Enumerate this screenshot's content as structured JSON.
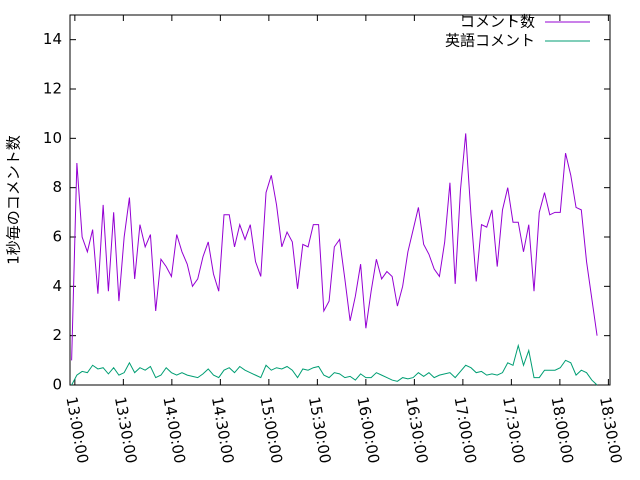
{
  "chart_data": {
    "type": "line",
    "ylabel": "1秒毎のコメント数",
    "x": [
      "12:58:00",
      "13:01:15",
      "13:04:30",
      "13:07:45",
      "13:11:00",
      "13:14:15",
      "13:17:30",
      "13:20:45",
      "13:24:00",
      "13:27:15",
      "13:30:30",
      "13:33:45",
      "13:37:00",
      "13:40:15",
      "13:43:30",
      "13:46:45",
      "13:50:00",
      "13:53:15",
      "13:56:30",
      "13:59:45",
      "14:03:00",
      "14:06:15",
      "14:09:30",
      "14:12:45",
      "14:16:00",
      "14:19:15",
      "14:22:30",
      "14:25:45",
      "14:29:00",
      "14:32:15",
      "14:35:30",
      "14:38:45",
      "14:42:00",
      "14:45:15",
      "14:48:30",
      "14:51:45",
      "14:55:00",
      "14:58:15",
      "15:01:30",
      "15:04:45",
      "15:08:00",
      "15:11:15",
      "15:14:30",
      "15:17:45",
      "15:21:00",
      "15:24:15",
      "15:27:30",
      "15:30:45",
      "15:34:00",
      "15:37:15",
      "15:40:30",
      "15:43:45",
      "15:47:00",
      "15:50:15",
      "15:53:30",
      "15:56:45",
      "16:00:00",
      "16:03:15",
      "16:06:30",
      "16:09:45",
      "16:13:00",
      "16:16:15",
      "16:19:30",
      "16:22:45",
      "16:26:00",
      "16:29:15",
      "16:32:30",
      "16:35:45",
      "16:39:00",
      "16:42:15",
      "16:45:30",
      "16:48:45",
      "16:52:00",
      "16:55:15",
      "16:58:30",
      "17:01:45",
      "17:05:00",
      "17:08:15",
      "17:11:30",
      "17:14:45",
      "17:18:00",
      "17:21:15",
      "17:24:30",
      "17:27:45",
      "17:31:00",
      "17:34:15",
      "17:37:30",
      "17:40:45",
      "17:44:00",
      "17:47:15",
      "17:50:30",
      "17:53:45",
      "17:57:00",
      "18:00:15",
      "18:03:30",
      "18:06:45",
      "18:10:00",
      "18:13:15",
      "18:16:30",
      "18:19:45",
      "18:23:00"
    ],
    "series": [
      {
        "name": "コメント数",
        "color": "#9400d3",
        "values": [
          1.0,
          9.0,
          6.0,
          5.4,
          6.3,
          3.7,
          7.3,
          3.8,
          7.0,
          3.4,
          6.0,
          7.6,
          4.3,
          6.5,
          5.6,
          6.1,
          3.0,
          5.1,
          4.8,
          4.4,
          6.1,
          5.4,
          4.9,
          4.0,
          4.3,
          5.2,
          5.8,
          4.5,
          3.8,
          6.9,
          6.9,
          5.6,
          6.5,
          5.9,
          6.5,
          5.0,
          4.4,
          7.8,
          8.5,
          7.3,
          5.6,
          6.2,
          5.8,
          3.9,
          5.7,
          5.6,
          6.5,
          6.5,
          3.0,
          3.4,
          5.6,
          5.9,
          4.3,
          2.6,
          3.6,
          4.9,
          2.3,
          3.8,
          5.1,
          4.3,
          4.6,
          4.4,
          3.2,
          4.0,
          5.4,
          6.3,
          7.2,
          5.7,
          5.3,
          4.7,
          4.4,
          5.8,
          8.2,
          4.1,
          7.9,
          10.2,
          6.9,
          4.2,
          6.5,
          6.4,
          7.1,
          4.8,
          7.1,
          8.0,
          6.6,
          6.6,
          5.4,
          6.5,
          3.8,
          7.0,
          7.8,
          6.9,
          7.0,
          7.0,
          9.4,
          8.5,
          7.2,
          7.1,
          5.0,
          3.5,
          2.0
        ]
      },
      {
        "name": "英語コメント",
        "color": "#009e73",
        "values": [
          0.0,
          0.4,
          0.55,
          0.5,
          0.8,
          0.65,
          0.7,
          0.45,
          0.7,
          0.4,
          0.5,
          0.9,
          0.5,
          0.7,
          0.6,
          0.75,
          0.3,
          0.4,
          0.7,
          0.5,
          0.4,
          0.5,
          0.4,
          0.35,
          0.3,
          0.45,
          0.65,
          0.4,
          0.3,
          0.6,
          0.7,
          0.5,
          0.75,
          0.6,
          0.5,
          0.4,
          0.3,
          0.8,
          0.6,
          0.7,
          0.65,
          0.75,
          0.6,
          0.3,
          0.65,
          0.6,
          0.7,
          0.75,
          0.4,
          0.3,
          0.5,
          0.45,
          0.3,
          0.35,
          0.2,
          0.45,
          0.3,
          0.3,
          0.5,
          0.4,
          0.3,
          0.2,
          0.15,
          0.3,
          0.25,
          0.3,
          0.5,
          0.35,
          0.5,
          0.3,
          0.4,
          0.45,
          0.5,
          0.3,
          0.55,
          0.8,
          0.7,
          0.5,
          0.55,
          0.4,
          0.45,
          0.4,
          0.5,
          0.9,
          0.8,
          1.6,
          0.8,
          1.4,
          0.3,
          0.3,
          0.6,
          0.6,
          0.6,
          0.7,
          1.0,
          0.9,
          0.4,
          0.6,
          0.5,
          0.2,
          0.0
        ]
      }
    ],
    "xlim": [
      "12:57:00",
      "18:31:00"
    ],
    "xticks": [
      "13:00:00",
      "13:30:00",
      "14:00:00",
      "14:30:00",
      "15:00:00",
      "15:30:00",
      "16:00:00",
      "16:30:00",
      "17:00:00",
      "17:30:00",
      "18:00:00",
      "18:30:00"
    ],
    "ylim": [
      0,
      15
    ],
    "yticks": [
      0,
      2,
      4,
      6,
      8,
      10,
      12,
      14
    ],
    "legend": "top-right"
  }
}
